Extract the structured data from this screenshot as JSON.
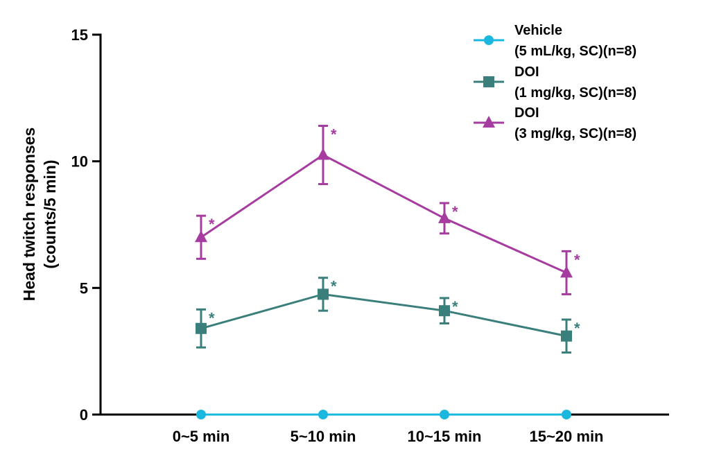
{
  "chart_data": {
    "type": "line",
    "title": "",
    "xlabel": "",
    "ylabel_lines": [
      "Head twitch responses",
      "(counts/5 min)"
    ],
    "categories": [
      "0~5 min",
      "5~10 min",
      "10~15 min",
      "15~20 min"
    ],
    "ylim": [
      0,
      15
    ],
    "yticks": [
      0,
      5,
      10,
      15
    ],
    "ytick_labels": [
      "0",
      "5",
      "10",
      "15"
    ],
    "grid": false,
    "legend_position": "top-right",
    "significance_marker": "*",
    "series": [
      {
        "legend_lines": [
          "Vehicle",
          "(5 mL/kg, SC)(n=8)"
        ],
        "color": "#1ab8df",
        "marker": "circle",
        "values": [
          0,
          0,
          0,
          0
        ],
        "errors": [
          0,
          0,
          0,
          0
        ],
        "significant": [
          false,
          false,
          false,
          false
        ]
      },
      {
        "legend_lines": [
          "DOI",
          "(1 mg/kg, SC)(n=8)"
        ],
        "color": "#3a7f7b",
        "marker": "square",
        "values": [
          3.4,
          4.75,
          4.1,
          3.1
        ],
        "errors": [
          0.75,
          0.65,
          0.5,
          0.65
        ],
        "significant": [
          true,
          true,
          true,
          true
        ]
      },
      {
        "legend_lines": [
          "DOI",
          "(3 mg/kg, SC)(n=8)"
        ],
        "color": "#a63c9f",
        "marker": "triangle",
        "values": [
          7.0,
          10.25,
          7.75,
          5.6
        ],
        "errors": [
          0.85,
          1.15,
          0.6,
          0.85
        ],
        "significant": [
          true,
          true,
          true,
          true
        ]
      }
    ]
  }
}
